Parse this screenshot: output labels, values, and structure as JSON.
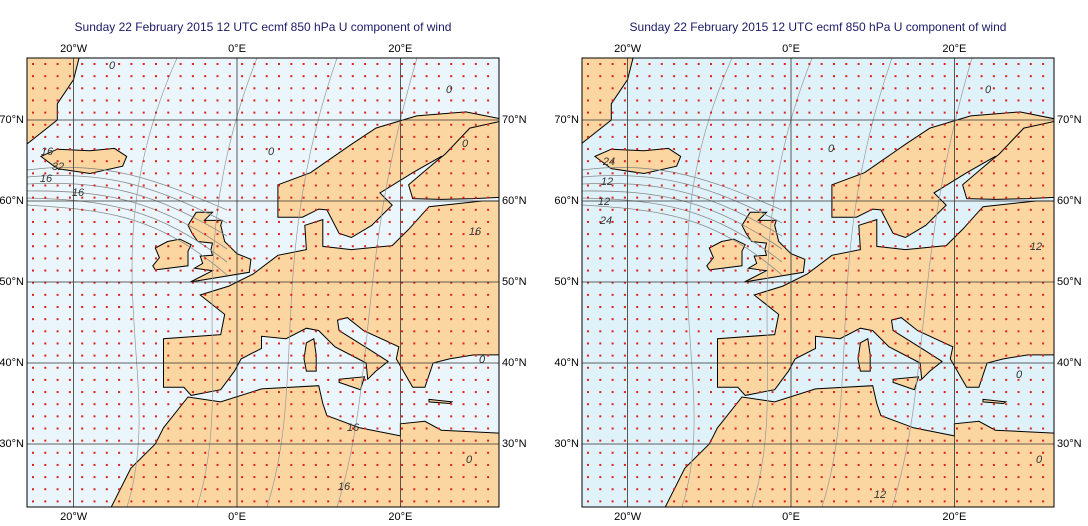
{
  "panels": [
    {
      "title": "Sunday 22 February 2015 12 UTC ecmf 850 hPa  U component of wind",
      "top_lon_labels": [
        "20°W",
        "0°E",
        "20°E"
      ],
      "bottom_lon_labels": [
        "20°W",
        "0°E",
        "20°E"
      ],
      "left_lat_labels": [
        "70°N",
        "60°N",
        "50°N",
        "40°N",
        "30°N"
      ],
      "right_lat_labels": [
        "70°N",
        "60°N",
        "50°N",
        "40°N",
        "30°N"
      ],
      "contour_labels": [
        "0",
        "0",
        "0",
        "0",
        "16",
        "32",
        "16",
        "16",
        "16",
        "0",
        "16",
        "0",
        "16"
      ]
    },
    {
      "title": "Sunday 22 February 2015 12 UTC ecmf 850 hPa  U component of wind",
      "top_lon_labels": [
        "20°W",
        "0°E",
        "20°E"
      ],
      "bottom_lon_labels": [
        "20°W",
        "0°E",
        "20°E"
      ],
      "left_lat_labels": [
        "70°N",
        "60°N",
        "50°N",
        "40°N",
        "30°N"
      ],
      "right_lat_labels": [
        "70°N",
        "60°N",
        "50°N",
        "40°N",
        "30°N"
      ],
      "contour_labels": [
        "0",
        "0",
        "24",
        "12",
        "12",
        "24",
        "12",
        "0",
        "0",
        "12"
      ]
    }
  ]
}
